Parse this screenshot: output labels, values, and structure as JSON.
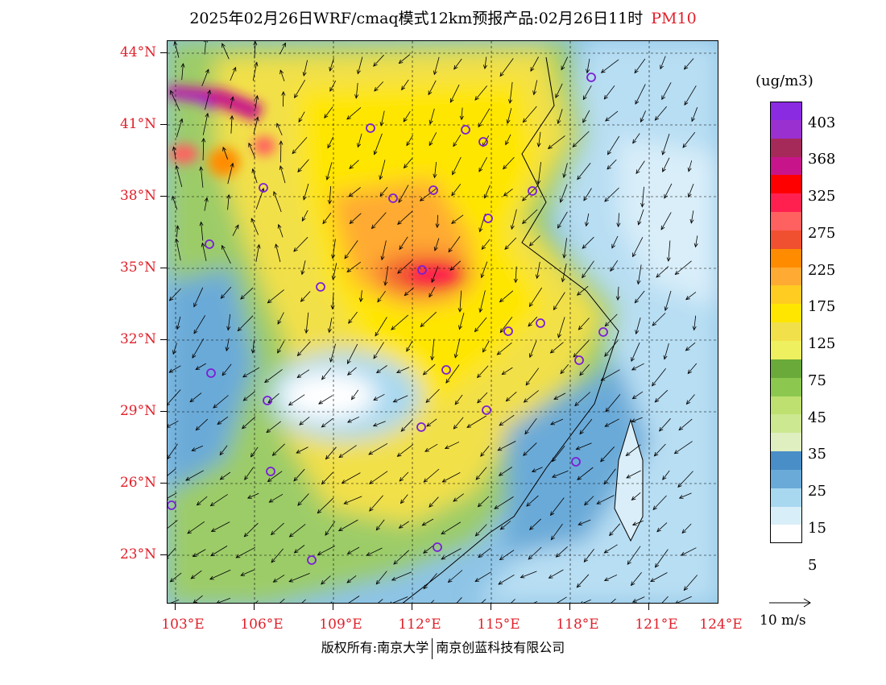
{
  "title": {
    "main": "2025年02月26日WRF/cmaq模式12km预报产品:02月26日11时",
    "pollutant": "PM10"
  },
  "map": {
    "lat_labels": [
      "44°N",
      "41°N",
      "38°N",
      "35°N",
      "32°N",
      "29°N",
      "26°N",
      "23°N"
    ],
    "lon_labels": [
      "103°E",
      "106°E",
      "109°E",
      "112°E",
      "115°E",
      "118°E",
      "121°E",
      "124°E"
    ],
    "lat_range": [
      20.9,
      44.5
    ],
    "lon_range": [
      102.8,
      123.9
    ]
  },
  "legend": {
    "unit": "(ug/m3)",
    "labels": [
      "403",
      "368",
      "325",
      "275",
      "225",
      "175",
      "125",
      "75",
      "45",
      "35",
      "25",
      "15",
      "5"
    ],
    "colors": [
      "#8a2be2",
      "#9b30d0",
      "#a52a5a",
      "#c8148a",
      "#ff0000",
      "#ff2050",
      "#ff6060",
      "#f05030",
      "#ff8c00",
      "#ffaa33",
      "#ffcc22",
      "#ffe600",
      "#f2e04a",
      "#eef060",
      "#6aaa3a",
      "#8cc850",
      "#bee070",
      "#cce890",
      "#dfefc0",
      "#4a8ec8",
      "#6aaad8",
      "#a8d8f0",
      "#d8eef8",
      "#ffffff"
    ]
  },
  "wind": {
    "scale_label": "10 m/s"
  },
  "footer": {
    "left": "版权所有:南京大学",
    "right": "南京创蓝科技有限公司"
  }
}
